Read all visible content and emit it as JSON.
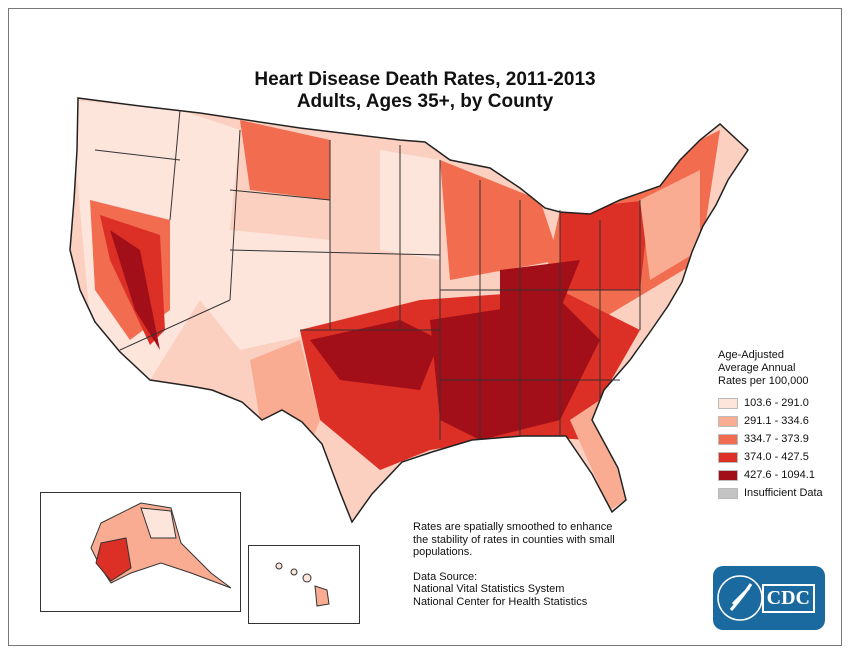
{
  "title": {
    "line1": "Heart Disease Death Rates, 2011-2013",
    "line2": "Adults, Ages 35+, by County"
  },
  "legend": {
    "heading": [
      "Age-Adjusted",
      "Average Annual",
      "Rates per 100,000"
    ],
    "items": [
      {
        "label": "103.6 - 291.0",
        "color": "#fde5dc"
      },
      {
        "label": "291.1 - 334.6",
        "color": "#f9ac92"
      },
      {
        "label": "334.7 - 373.9",
        "color": "#f26c4f"
      },
      {
        "label": "374.0 - 427.5",
        "color": "#dc2f26"
      },
      {
        "label": "427.6 - 1094.1",
        "color": "#a30f18"
      },
      {
        "label": "Insufficient Data",
        "color": "#c4c4c4"
      }
    ]
  },
  "notes": {
    "smoothing": [
      "Rates are spatially smoothed to enhance",
      "the stability of rates in counties with small",
      "populations."
    ],
    "source_heading": "Data Source:",
    "sources": [
      "National Vital Statistics System",
      "National Center for Health Statistics"
    ]
  },
  "logo": {
    "text": "CDC"
  }
}
